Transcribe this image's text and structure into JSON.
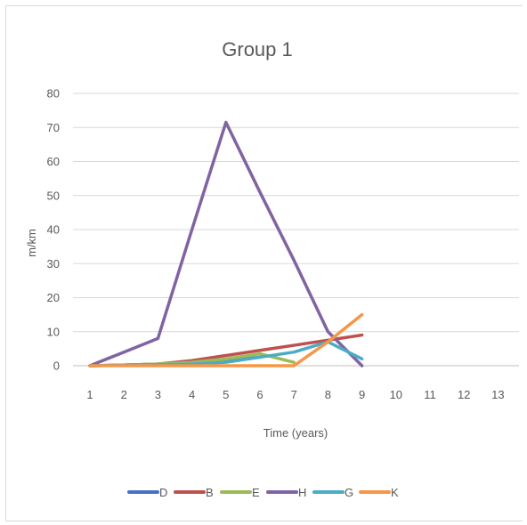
{
  "chart_data": {
    "type": "line",
    "title": "Group 1",
    "xlabel": "Time (years)",
    "ylabel": "m/km",
    "categories": [
      "1",
      "2",
      "3",
      "4",
      "5",
      "6",
      "7",
      "8",
      "9",
      "10",
      "11",
      "12",
      "13"
    ],
    "ylim": [
      0,
      80
    ],
    "yticks": [
      "0",
      "10",
      "20",
      "30",
      "40",
      "50",
      "60",
      "70",
      "80"
    ],
    "grid": true,
    "legend_position": "bottom",
    "series": [
      {
        "name": "D",
        "color": "#4472c4",
        "values": [
          0,
          0.2,
          0.5,
          1.0,
          1.5,
          2.5,
          null,
          null,
          null,
          null,
          null,
          null,
          null
        ]
      },
      {
        "name": "B",
        "color": "#c0504d",
        "values": [
          0,
          0.2,
          0.5,
          1.5,
          3.0,
          4.5,
          6.0,
          7.5,
          9.0,
          null,
          null,
          null,
          null
        ]
      },
      {
        "name": "E",
        "color": "#9bbb59",
        "values": [
          0,
          0.2,
          0.5,
          1.0,
          2.0,
          3.5,
          1.0,
          null,
          null,
          null,
          null,
          null,
          null
        ]
      },
      {
        "name": "H",
        "color": "#8064a2",
        "values": [
          0,
          4,
          8,
          40,
          71.5,
          51,
          31,
          10,
          0,
          null,
          null,
          null,
          null
        ]
      },
      {
        "name": "G",
        "color": "#4bacc6",
        "values": [
          0,
          0.2,
          0.3,
          0.5,
          1.0,
          2.5,
          4.0,
          7.0,
          2.0,
          null,
          null,
          null,
          null
        ]
      },
      {
        "name": "K",
        "color": "#f79646",
        "values": [
          0,
          0,
          0,
          0,
          0,
          0,
          0,
          7.0,
          15.0,
          null,
          null,
          null,
          null
        ]
      }
    ]
  }
}
